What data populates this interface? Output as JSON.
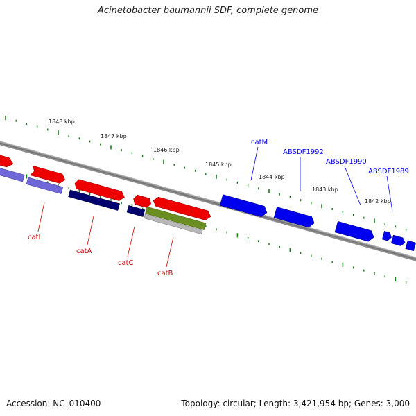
{
  "title": "Acinetobacter baumannii SDF, complete genome",
  "footer": {
    "accession": "Accession: NC_010400",
    "summary": "Topology: circular; Length: 3,421,954 bp; Genes: 3,000"
  },
  "ruler": {
    "labels": [
      "1848 kbp",
      "1847 kbp",
      "1846 kbp",
      "1845 kbp",
      "1844 kbp",
      "1843 kbp",
      "1842 kbp"
    ]
  },
  "genes_reverse": {
    "color": "#0000ee",
    "labels": [
      "catM",
      "ABSDF1992",
      "ABSDF1990",
      "ABSDF1989"
    ]
  },
  "genes_forward": {
    "color": "#cc0000",
    "labels": [
      "catI",
      "catA",
      "catC",
      "catB"
    ]
  },
  "colors": {
    "backbone": "#808080",
    "tick": "#1a7a1a",
    "feature_red": "#ee0000",
    "feature_blue": "#0000ee",
    "feature_navy": "#00006e",
    "feature_lavender": "#7068d8",
    "feature_olive": "#6b8e23",
    "feature_silver": "#b8b8b8"
  }
}
